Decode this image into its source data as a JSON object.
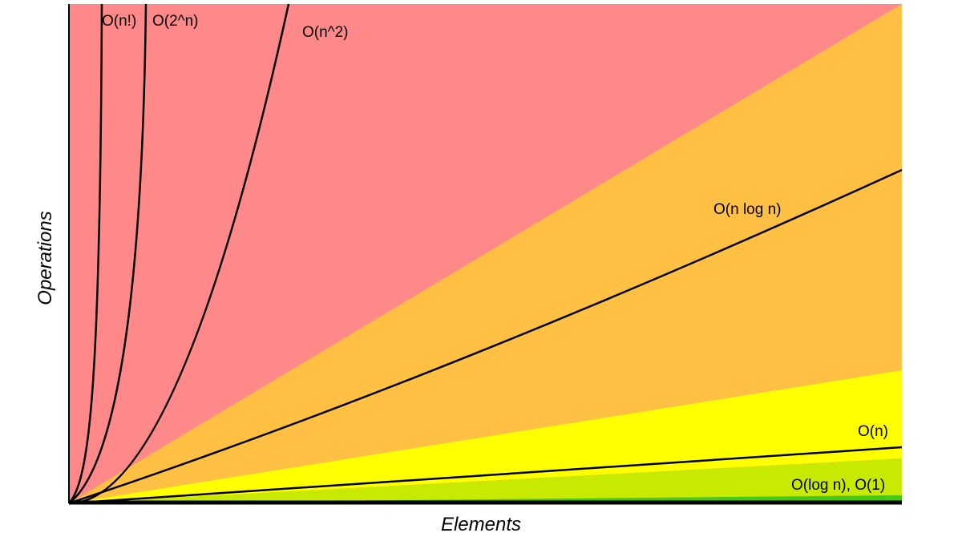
{
  "axes": {
    "x_label": "Elements",
    "y_label": "Operations"
  },
  "curves": [
    {
      "label": "O(n!)"
    },
    {
      "label": "O(2^n)"
    },
    {
      "label": "O(n^2)"
    },
    {
      "label": "O(n log n)"
    },
    {
      "label": "O(n)"
    },
    {
      "label": "O(log n), O(1)"
    }
  ]
}
